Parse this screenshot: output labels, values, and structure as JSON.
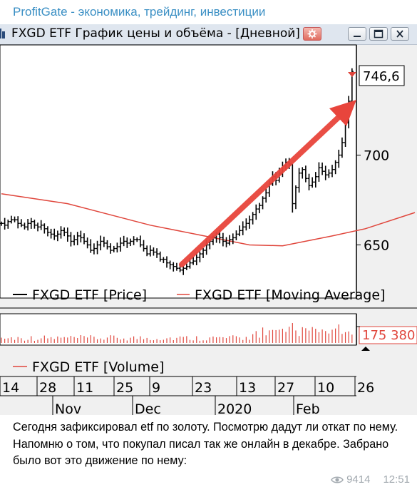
{
  "channel": {
    "name": "ProfitGate - экономика, трейдинг, инвестиции"
  },
  "window": {
    "title": "FXGD ETF График цены и объёма - [Дневной]",
    "buttons": [
      "options-icon",
      "minimize-icon",
      "maximize-icon",
      "close-icon"
    ]
  },
  "chart_data": {
    "type": "line",
    "ticker": "FXGD ETF",
    "price_axis": {
      "ticks": [
        "650",
        "700"
      ],
      "ylim": [
        622,
        757
      ],
      "last_value_label": "746,6"
    },
    "volume_axis": {
      "last_value_label": "175 380"
    },
    "x_axis": {
      "day_ticks": [
        "14",
        "28",
        "11",
        "25",
        "9",
        "23",
        "13",
        "27",
        "10",
        "26"
      ],
      "month_ticks": [
        "Nov",
        "Dec",
        "2020",
        "Feb"
      ]
    },
    "series": [
      {
        "name": "FXGD ETF [Price]",
        "color": "#000000"
      },
      {
        "name": "FXGD ETF [Moving Average]",
        "color": "#e0463c"
      },
      {
        "name": "FXGD ETF [Volume]",
        "color": "#e0463c"
      }
    ],
    "price_close": [
      662,
      661,
      663,
      664,
      664,
      662,
      661,
      660,
      662,
      663,
      661,
      660,
      661,
      659,
      657,
      656,
      655,
      656,
      658,
      657,
      655,
      652,
      653,
      655,
      654,
      652,
      650,
      647,
      648,
      650,
      652,
      651,
      649,
      647,
      648,
      649,
      651,
      652,
      651,
      652,
      653,
      653,
      650,
      648,
      645,
      647,
      646,
      645,
      642,
      642,
      640,
      639,
      638,
      637,
      636,
      637,
      638,
      640,
      641,
      643,
      645,
      647,
      650,
      652,
      654,
      656,
      654,
      652,
      651,
      653,
      654,
      656,
      658,
      660,
      662,
      664,
      667,
      670,
      672,
      676,
      679,
      684,
      688,
      686,
      690,
      694,
      696,
      695,
      673,
      682,
      690,
      692,
      687,
      683,
      685,
      688,
      693,
      691,
      689,
      690,
      692,
      696,
      700,
      707,
      718,
      730,
      746.6
    ],
    "moving_average_anchors": [
      [
        0,
        678.5
      ],
      [
        20,
        673
      ],
      [
        45,
        661
      ],
      [
        60,
        655.5
      ],
      [
        75,
        650
      ],
      [
        85,
        649.5
      ],
      [
        100,
        655
      ],
      [
        110,
        659
      ],
      [
        125,
        668
      ]
    ],
    "volume_axis_label_note": "",
    "arrow_annotation": true
  },
  "caption": {
    "text": "Сегодня зафиксировал etf по золоту. Посмотрю дадут ли откат по нему. Напомню о том, что покупал писал так же онлайн в декабре. Забрано было вот это движение по нему:",
    "views": "9414",
    "time": "12:51"
  }
}
